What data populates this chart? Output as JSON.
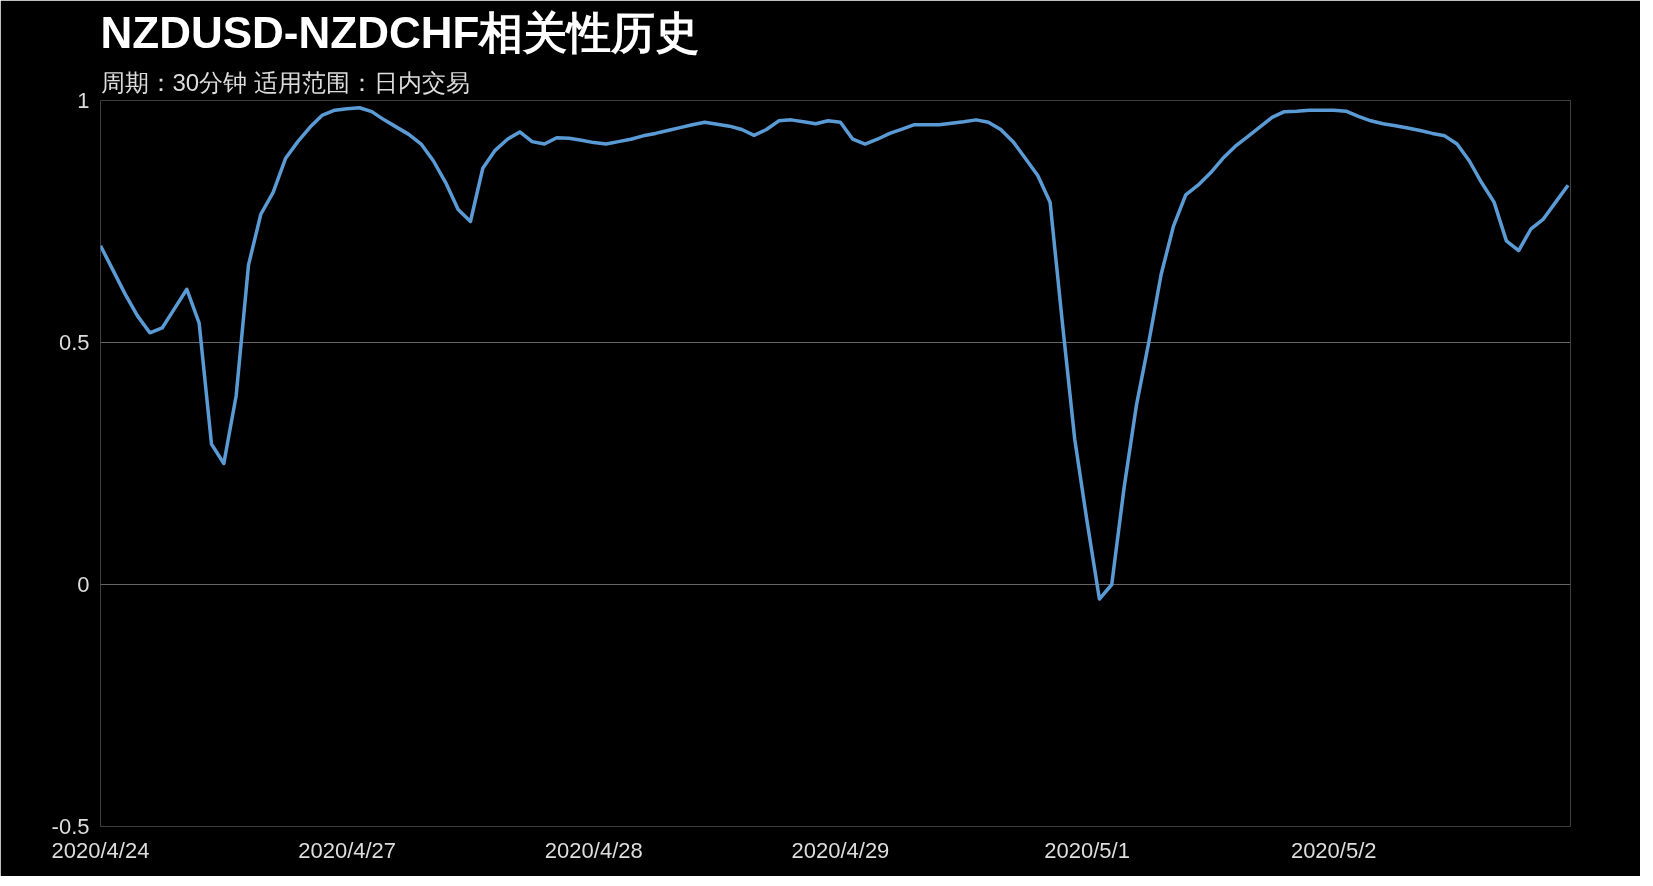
{
  "chart_data": {
    "type": "line",
    "title": "NZDUSD-NZDCHF相关性历史",
    "subtitle": "周期：30分钟  适用范围：日内交易",
    "categories": [
      "2020/4/24",
      null,
      null,
      null,
      null,
      null,
      null,
      null,
      null,
      null,
      null,
      null,
      null,
      null,
      null,
      null,
      null,
      null,
      null,
      null,
      "2020/4/27",
      null,
      null,
      null,
      null,
      null,
      null,
      null,
      null,
      null,
      null,
      null,
      null,
      null,
      null,
      null,
      null,
      null,
      null,
      null,
      "2020/4/28",
      null,
      null,
      null,
      null,
      null,
      null,
      null,
      null,
      null,
      null,
      null,
      null,
      null,
      null,
      null,
      null,
      null,
      null,
      null,
      "2020/4/29",
      null,
      null,
      null,
      null,
      null,
      null,
      null,
      null,
      null,
      null,
      null,
      null,
      null,
      null,
      null,
      null,
      null,
      null,
      null,
      "2020/5/1",
      null,
      null,
      null,
      null,
      null,
      null,
      null,
      null,
      null,
      null,
      null,
      null,
      null,
      null,
      null,
      null,
      null,
      null,
      null,
      "2020/5/2",
      null,
      null,
      null,
      null,
      null,
      null,
      null,
      null,
      null,
      null,
      null,
      null,
      null,
      null,
      null,
      null,
      null,
      null,
      null
    ],
    "series": [
      {
        "color": "#5b9bd5",
        "values": [
          0.7,
          0.65,
          0.6,
          0.555,
          0.52,
          0.53,
          0.57,
          0.61,
          0.54,
          0.29,
          0.25,
          0.39,
          0.66,
          0.765,
          0.81,
          0.88,
          0.915,
          0.945,
          0.97,
          0.98,
          0.983,
          0.985,
          0.977,
          0.96,
          0.945,
          0.93,
          0.91,
          0.875,
          0.83,
          0.775,
          0.75,
          0.86,
          0.897,
          0.92,
          0.935,
          0.915,
          0.91,
          0.923,
          0.922,
          0.918,
          0.913,
          0.91,
          0.915,
          0.92,
          0.927,
          0.932,
          0.938,
          0.944,
          0.95,
          0.955,
          0.951,
          0.947,
          0.94,
          0.928,
          0.94,
          0.958,
          0.96,
          0.956,
          0.952,
          0.958,
          0.955,
          0.92,
          0.91,
          0.92,
          0.932,
          0.941,
          0.95,
          0.95,
          0.95,
          0.953,
          0.956,
          0.96,
          0.955,
          0.94,
          0.915,
          0.88,
          0.845,
          0.79,
          0.54,
          0.3,
          0.13,
          -0.03,
          0.0,
          0.2,
          0.37,
          0.5,
          0.64,
          0.74,
          0.805,
          0.825,
          0.85,
          0.88,
          0.905,
          0.925,
          0.945,
          0.965,
          0.977,
          0.978,
          0.98,
          0.98,
          0.98,
          0.978,
          0.967,
          0.958,
          0.952,
          0.948,
          0.943,
          0.938,
          0.932,
          0.927,
          0.91,
          0.875,
          0.83,
          0.79,
          0.71,
          0.69,
          0.735,
          0.755,
          0.79,
          0.825
        ]
      }
    ],
    "ylim": [
      -0.5,
      1
    ],
    "yticks": [
      -0.5,
      0,
      0.5,
      1
    ],
    "grid": "y",
    "line_style": "solid"
  }
}
